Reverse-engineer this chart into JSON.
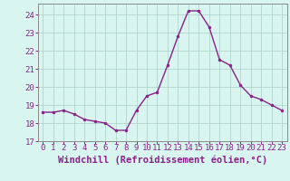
{
  "x": [
    0,
    1,
    2,
    3,
    4,
    5,
    6,
    7,
    8,
    9,
    10,
    11,
    12,
    13,
    14,
    15,
    16,
    17,
    18,
    19,
    20,
    21,
    22,
    23
  ],
  "y": [
    18.6,
    18.6,
    18.7,
    18.5,
    18.2,
    18.1,
    18.0,
    17.6,
    17.6,
    18.7,
    19.5,
    19.7,
    21.2,
    22.8,
    24.2,
    24.2,
    23.3,
    21.5,
    21.2,
    20.1,
    19.5,
    19.3,
    19.0,
    18.7
  ],
  "line_color": "#882288",
  "marker": "o",
  "markersize": 2.0,
  "linewidth": 1.0,
  "xlabel": "Windchill (Refroidissement éolien,°C)",
  "ylabel": "",
  "xlim": [
    -0.5,
    23.5
  ],
  "ylim": [
    17,
    24.6
  ],
  "yticks": [
    17,
    18,
    19,
    20,
    21,
    22,
    23,
    24
  ],
  "xticks": [
    0,
    1,
    2,
    3,
    4,
    5,
    6,
    7,
    8,
    9,
    10,
    11,
    12,
    13,
    14,
    15,
    16,
    17,
    18,
    19,
    20,
    21,
    22,
    23
  ],
  "bg_color": "#d8f5ef",
  "grid_color": "#aacfc8",
  "tick_color": "#882288",
  "label_color": "#882288",
  "xlabel_fontsize": 7.5,
  "tick_fontsize": 6.5,
  "spine_color": "#888888"
}
